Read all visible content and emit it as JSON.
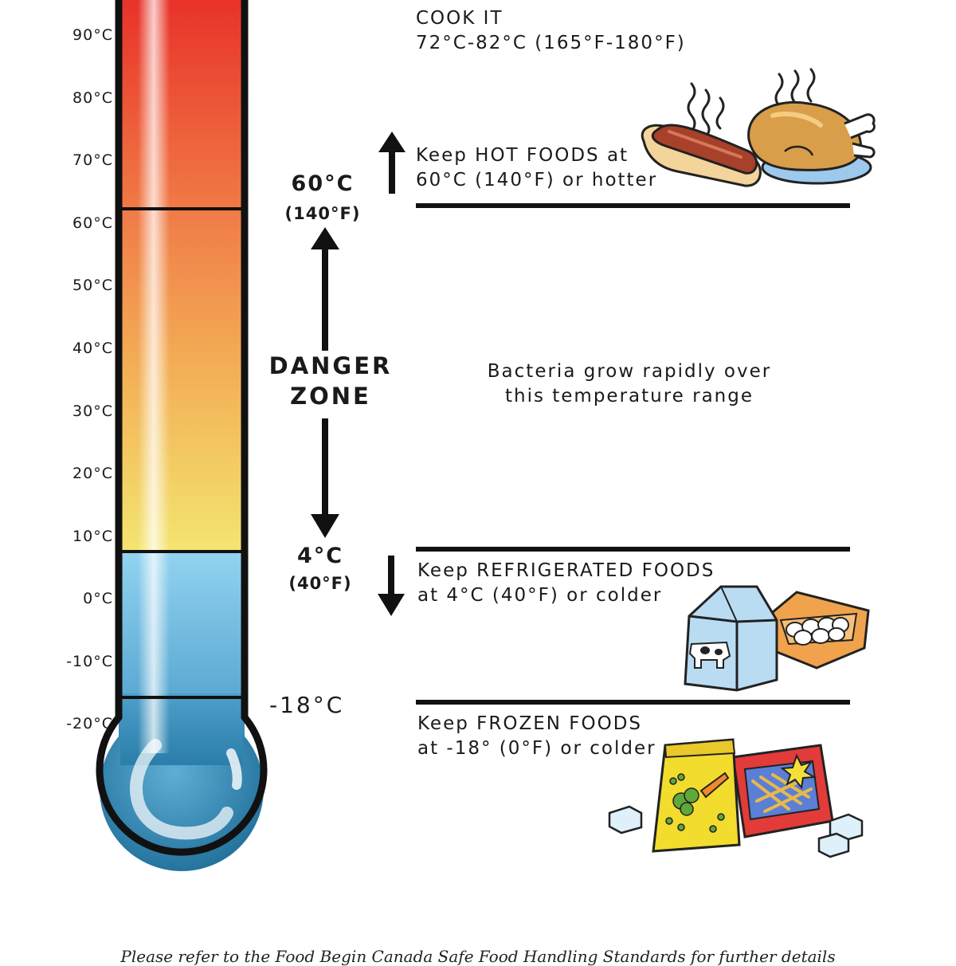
{
  "thermometer": {
    "ticks": [
      "90°C",
      "80°C",
      "70°C",
      "60°C",
      "50°C",
      "40°C",
      "30°C",
      "20°C",
      "10°C",
      "0°C",
      "-10°C",
      "-20°C"
    ],
    "colors": {
      "hot": "#e8322a",
      "warm": "#f08a4b",
      "yellow": "#f3e46e",
      "cold": "#8fd0ee",
      "frozen": "#2f8ab5"
    }
  },
  "markers": {
    "hot_c": "60°C",
    "hot_f": "(140°F)",
    "cold_c": "4°C",
    "cold_f": "(40°F)",
    "frozen_c": "-18°C"
  },
  "danger_zone": {
    "line1": "DANGER",
    "line2": "ZONE"
  },
  "labels": {
    "cook_title": "COOK IT",
    "cook_range": "72°C-82°C (165°F-180°F)",
    "hot_line1": "Keep HOT FOODS at",
    "hot_line2": "60°C (140°F) or hotter",
    "bacteria_line1": "Bacteria grow rapidly over",
    "bacteria_line2": "this temperature range",
    "fridge_line1": "Keep REFRIGERATED FOODS",
    "fridge_line2": "at 4°C (40°F) or colder",
    "frozen_line1": "Keep FROZEN FOODS",
    "frozen_line2": "at -18° (0°F) or colder"
  },
  "footer": {
    "text": "Please refer to the Food Begin Canada Safe Food Handling Standards for further details"
  },
  "illustrations": [
    "hotdog-icon",
    "roast-chicken-icon",
    "milk-carton-icon",
    "egg-carton-icon",
    "frozen-vegetables-bag-icon",
    "frozen-fries-bag-icon",
    "ice-cube-icon"
  ]
}
